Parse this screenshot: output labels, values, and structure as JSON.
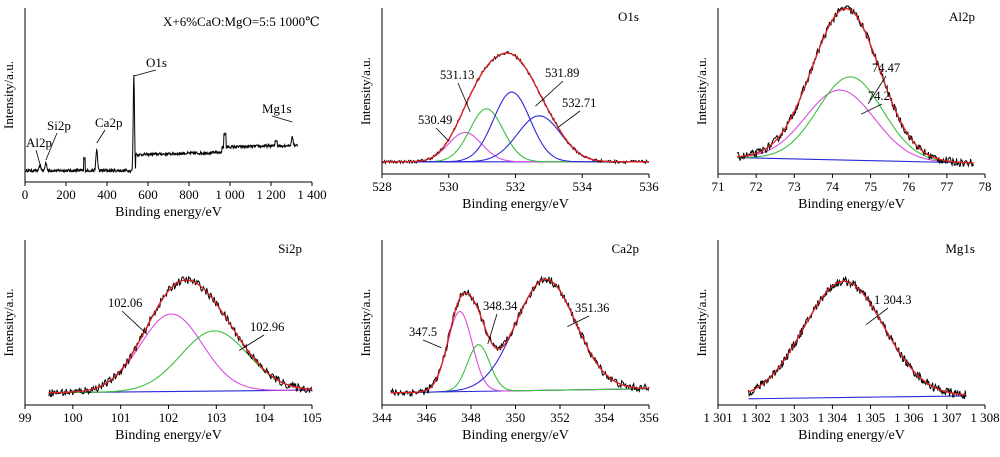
{
  "figure": {
    "y_label": "Intensity/a.u.",
    "x_label": "Binding energy/eV"
  },
  "chart_data": [
    {
      "type": "line",
      "title": "X+6%CaO:MgO=5:5 1000℃",
      "xlim": [
        0,
        1400
      ],
      "xticks": [
        0,
        200,
        400,
        600,
        800,
        1000,
        1200,
        1400
      ],
      "xtick_labels": [
        "0",
        "200",
        "400",
        "600",
        "800",
        "1 000",
        "1 200",
        "1 400"
      ],
      "ylim": [
        0,
        100
      ],
      "xlabel": "Binding energy/eV",
      "ylabel": "Intensity/a.u.",
      "peaks": [
        {
          "name": "Al2p",
          "x": 74,
          "height": 4
        },
        {
          "name": "Si2p",
          "x": 102,
          "height": 6
        },
        {
          "name": "Ca2p",
          "x": 350,
          "height": 16
        },
        {
          "name": "O1s",
          "x": 531,
          "height": 73
        },
        {
          "name": "Mg1s",
          "x": 1304,
          "height": 6
        }
      ],
      "annotations": [
        {
          "text": "Al2p",
          "x": 74
        },
        {
          "text": "Si2p",
          "x": 102
        },
        {
          "text": "Ca2p",
          "x": 350
        },
        {
          "text": "O1s",
          "x": 531
        },
        {
          "text": "Mg1s",
          "x": 1304
        }
      ]
    },
    {
      "type": "line",
      "title": "O1s",
      "xlim": [
        528,
        536
      ],
      "xticks": [
        528,
        530,
        532,
        534,
        536
      ],
      "xtick_labels": [
        "528",
        "530",
        "532",
        "534",
        "536"
      ],
      "ylim": [
        0,
        100
      ],
      "xlabel": "Binding energy/eV",
      "ylabel": "Intensity/a.u.",
      "baseline": 4,
      "components": [
        {
          "center": 530.49,
          "amplitude": 21,
          "sigma": 0.5,
          "color": "#d84de0"
        },
        {
          "center": 531.13,
          "amplitude": 38,
          "sigma": 0.5,
          "color": "#3bbf3b"
        },
        {
          "center": 531.89,
          "amplitude": 50,
          "sigma": 0.55,
          "color": "#2a2ad8"
        },
        {
          "center": 532.71,
          "amplitude": 33,
          "sigma": 0.65,
          "color": "#2a2ad8"
        }
      ],
      "annotations": [
        {
          "text": "530.49",
          "x": 530.49
        },
        {
          "text": "531.13",
          "x": 531.13
        },
        {
          "text": "531.89",
          "x": 531.89
        },
        {
          "text": "532.71",
          "x": 532.71
        }
      ]
    },
    {
      "type": "line",
      "title": "Al2p",
      "xlim": [
        71,
        78
      ],
      "xticks": [
        71,
        72,
        73,
        74,
        75,
        76,
        77,
        78
      ],
      "xtick_labels": [
        "71",
        "72",
        "73",
        "74",
        "75",
        "76",
        "77",
        "78"
      ],
      "ylim": [
        0,
        100
      ],
      "xlabel": "Binding energy/eV",
      "ylabel": "Intensity/a.u.",
      "data_range": [
        71.5,
        77.7
      ],
      "baseline_line": [
        [
          71.5,
          6
        ],
        [
          77.7,
          2
        ]
      ],
      "components": [
        {
          "center": 74.2,
          "amplitude": 52,
          "sigma": 0.9,
          "color": "#d84de0"
        },
        {
          "center": 74.47,
          "amplitude": 62,
          "sigma": 0.85,
          "color": "#3bbf3b"
        }
      ],
      "annotations": [
        {
          "text": "74.47",
          "x": 74.47
        },
        {
          "text": "74.2",
          "x": 74.2
        }
      ]
    },
    {
      "type": "line",
      "title": "Si2p",
      "xlim": [
        99,
        105
      ],
      "xticks": [
        99,
        100,
        101,
        102,
        103,
        104,
        105
      ],
      "xtick_labels": [
        "99",
        "100",
        "101",
        "102",
        "103",
        "104",
        "105"
      ],
      "ylim": [
        0,
        100
      ],
      "xlabel": "Binding energy/eV",
      "ylabel": "Intensity/a.u.",
      "data_range": [
        99.5,
        105
      ],
      "baseline_line": [
        [
          99.5,
          3
        ],
        [
          105,
          5
        ]
      ],
      "components": [
        {
          "center": 102.06,
          "amplitude": 58,
          "sigma": 0.65,
          "color": "#d84de0"
        },
        {
          "center": 102.96,
          "amplitude": 45,
          "sigma": 0.7,
          "color": "#3bbf3b"
        }
      ],
      "annotations": [
        {
          "text": "102.06",
          "x": 102.06
        },
        {
          "text": "102.96",
          "x": 102.96
        }
      ]
    },
    {
      "type": "line",
      "title": "Ca2p",
      "xlim": [
        344,
        356
      ],
      "xticks": [
        344,
        346,
        348,
        350,
        352,
        354,
        356
      ],
      "xtick_labels": [
        "344",
        "346",
        "348",
        "350",
        "352",
        "354",
        "356"
      ],
      "ylim": [
        0,
        100
      ],
      "xlabel": "Binding energy/eV",
      "ylabel": "Intensity/a.u.",
      "data_range": [
        344.4,
        356
      ],
      "baseline_line": [
        [
          344.4,
          3
        ],
        [
          356,
          6
        ]
      ],
      "components": [
        {
          "center": 347.5,
          "amplitude": 60,
          "sigma": 0.55,
          "color": "#d84de0"
        },
        {
          "center": 348.34,
          "amplitude": 35,
          "sigma": 0.5,
          "color": "#3bbf3b"
        },
        {
          "center": 351.36,
          "amplitude": 83,
          "sigma": 1.35,
          "color": "#2a2ad8"
        }
      ],
      "annotations": [
        {
          "text": "347.5",
          "x": 347.5
        },
        {
          "text": "348.34",
          "x": 348.34
        },
        {
          "text": "351.36",
          "x": 351.36
        }
      ]
    },
    {
      "type": "line",
      "title": "Mg1s",
      "xlim": [
        1301,
        1308
      ],
      "xticks": [
        1301,
        1302,
        1303,
        1304,
        1305,
        1306,
        1307,
        1308
      ],
      "xtick_labels": [
        "1 301",
        "1 302",
        "1 303",
        "1 304",
        "1 305",
        "1 306",
        "1 307",
        "1 308"
      ],
      "ylim": [
        0,
        100
      ],
      "xlabel": "Binding energy/eV",
      "ylabel": "Intensity/a.u.",
      "data_range": [
        1301.8,
        1307.5
      ],
      "baseline_line": [
        [
          1301.8,
          2
        ],
        [
          1307.5,
          4
        ]
      ],
      "components": [
        {
          "center": 1304.3,
          "amplitude": 80,
          "sigma": 1.05,
          "color": "#d84de0"
        }
      ],
      "annotations": [
        {
          "text": "1 304.3",
          "x": 1304.3
        }
      ]
    }
  ]
}
